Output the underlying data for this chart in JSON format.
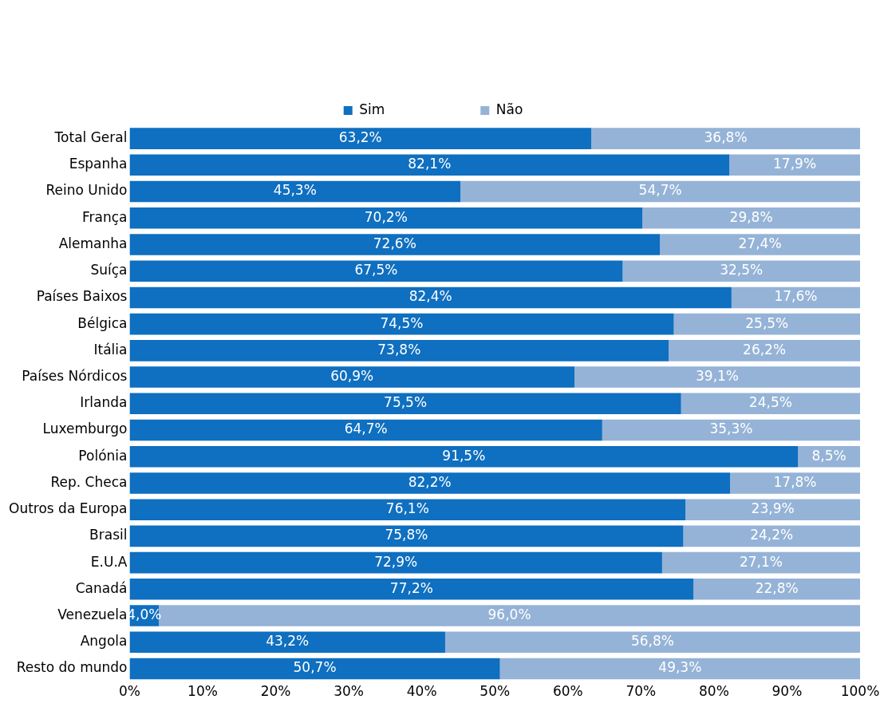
{
  "chart_data": {
    "type": "bar",
    "orientation": "horizontal",
    "stacked": true,
    "legend": "top",
    "grid": false,
    "categories": [
      "Total Geral",
      "Espanha",
      "Reino Unido",
      "França",
      "Alemanha",
      "Suíça",
      "Países Baixos",
      "Bélgica",
      "Itália",
      "Países Nórdicos",
      "Irlanda",
      "Luxemburgo",
      "Polónia",
      "Rep. Checa",
      "Outros da Europa",
      "Brasil",
      "E.U.A",
      "Canadá",
      "Venezuela",
      "Angola",
      "Resto do mundo"
    ],
    "xlim": [
      0,
      100
    ],
    "xticks": [
      {
        "value": 0,
        "label": "0%"
      },
      {
        "value": 10,
        "label": "10%"
      },
      {
        "value": 20,
        "label": "20%"
      },
      {
        "value": 30,
        "label": "30%"
      },
      {
        "value": 40,
        "label": "40%"
      },
      {
        "value": 50,
        "label": "50%"
      },
      {
        "value": 60,
        "label": "60%"
      },
      {
        "value": 70,
        "label": "70%"
      },
      {
        "value": 80,
        "label": "80%"
      },
      {
        "value": 90,
        "label": "90%"
      },
      {
        "value": 100,
        "label": "100%"
      }
    ],
    "series": [
      {
        "name": "Sim",
        "color": "#0f6fc0",
        "values": [
          63.2,
          82.1,
          45.3,
          70.2,
          72.6,
          67.5,
          82.4,
          74.5,
          73.8,
          60.9,
          75.5,
          64.7,
          91.5,
          82.2,
          76.1,
          75.8,
          72.9,
          77.2,
          4.0,
          43.2,
          50.7
        ],
        "value_labels": [
          "63,2%",
          "82,1%",
          "45,3%",
          "70,2%",
          "72,6%",
          "67,5%",
          "82,4%",
          "74,5%",
          "73,8%",
          "60,9%",
          "75,5%",
          "64,7%",
          "91,5%",
          "82,2%",
          "76,1%",
          "75,8%",
          "72,9%",
          "77,2%",
          "4,0%",
          "43,2%",
          "50,7%"
        ]
      },
      {
        "name": "Não",
        "color": "#95b3d7",
        "values": [
          36.8,
          17.9,
          54.7,
          29.8,
          27.4,
          32.5,
          17.6,
          25.5,
          26.2,
          39.1,
          24.5,
          35.3,
          8.5,
          17.8,
          23.9,
          24.2,
          27.1,
          22.8,
          96.0,
          56.8,
          49.3
        ],
        "value_labels": [
          "36,8%",
          "17,9%",
          "54,7%",
          "29,8%",
          "27,4%",
          "32,5%",
          "17,6%",
          "25,5%",
          "26,2%",
          "39,1%",
          "24,5%",
          "35,3%",
          "8,5%",
          "17,8%",
          "23,9%",
          "24,2%",
          "27,1%",
          "22,8%",
          "96,0%",
          "56,8%",
          "49,3%"
        ]
      }
    ]
  }
}
